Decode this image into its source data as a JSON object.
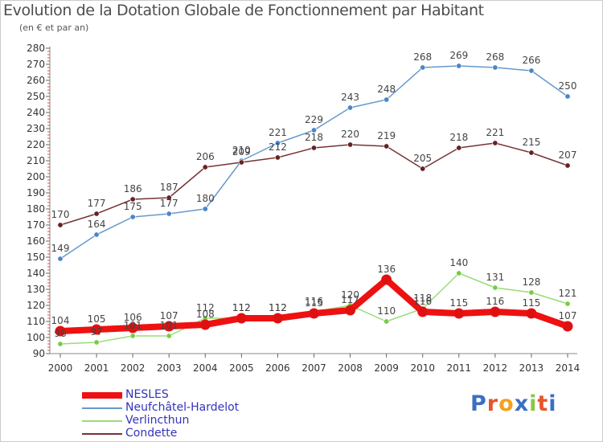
{
  "title": "Evolution de la Dotation Globale de Fonctionnement par Habitant",
  "subtitle": "(en € et par an)",
  "brand": {
    "text": "Proxiti",
    "letter_colors": [
      "#3a6fc4",
      "#e8542c",
      "#f2a21c",
      "#3a6fc4",
      "#8cc63f",
      "#e8542c",
      "#3a6fc4"
    ]
  },
  "chart_data": {
    "type": "line",
    "x": [
      2000,
      2001,
      2002,
      2003,
      2004,
      2005,
      2006,
      2007,
      2008,
      2009,
      2010,
      2011,
      2012,
      2013,
      2014
    ],
    "ylim": [
      90,
      280
    ],
    "yticks": [
      90,
      100,
      110,
      120,
      130,
      140,
      150,
      160,
      170,
      180,
      190,
      200,
      210,
      220,
      230,
      240,
      250,
      260,
      270,
      280
    ],
    "grid": "none",
    "legend_position": "bottom-left",
    "series": [
      {
        "name": "NESLES",
        "color": "#ee1111",
        "width": 8,
        "marker": "#dd1111",
        "values": [
          104,
          105,
          106,
          107,
          108,
          112,
          112,
          115,
          117,
          136,
          116,
          115,
          116,
          115,
          107
        ],
        "labels": [
          "104",
          "105",
          "106",
          "107",
          "108",
          "112",
          "112",
          "115",
          "117",
          "136",
          "116",
          "115",
          "116",
          "115",
          "107"
        ]
      },
      {
        "name": "Neufchâtel-Hardelot",
        "color": "#6699cc",
        "width": 1.5,
        "marker": "#4a86c8",
        "values": [
          149,
          164,
          175,
          177,
          180,
          210,
          221,
          229,
          243,
          248,
          268,
          269,
          268,
          266,
          250
        ],
        "labels": [
          "149",
          "164",
          "175",
          "177",
          "180",
          "210",
          "221",
          "229",
          "243",
          "248",
          "268",
          "269",
          "268",
          "266",
          "250"
        ]
      },
      {
        "name": "Verlincthun",
        "color": "#99dd77",
        "width": 1.5,
        "marker": "#77cc44",
        "values": [
          96,
          97,
          101,
          101,
          112,
          112,
          112,
          116,
          120,
          110,
          118,
          140,
          131,
          128,
          121
        ],
        "labels": [
          "96",
          "97",
          "101",
          "101",
          "112",
          "112",
          "112",
          "116",
          "120",
          "110",
          "118",
          "140",
          "131",
          "128",
          "121"
        ]
      },
      {
        "name": "Condette",
        "color": "#773333",
        "width": 1.5,
        "marker": "#662222",
        "values": [
          170,
          177,
          186,
          187,
          206,
          209,
          212,
          218,
          220,
          219,
          205,
          218,
          221,
          215,
          207
        ],
        "labels": [
          "170",
          "177",
          "186",
          "187",
          "206",
          "209",
          "212",
          "218",
          "220",
          "219",
          "205",
          "218",
          "221",
          "215",
          "207"
        ]
      }
    ]
  }
}
